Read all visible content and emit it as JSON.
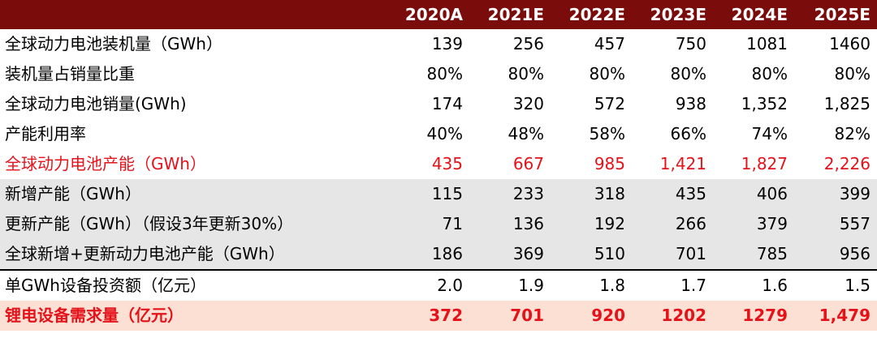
{
  "header": {
    "columns": [
      "",
      "2020A",
      "2021E",
      "2022E",
      "2023E",
      "2024E",
      "2025E"
    ]
  },
  "rows": [
    {
      "label": "全球动力电池装机量（GWh）",
      "values": [
        "139",
        "256",
        "457",
        "750",
        "1081",
        "1460"
      ],
      "style": "plain"
    },
    {
      "label": "装机量占销量比重",
      "values": [
        "80%",
        "80%",
        "80%",
        "80%",
        "80%",
        "80%"
      ],
      "style": "plain"
    },
    {
      "label": "全球动力电池销量(GWh)",
      "values": [
        "174",
        "320",
        "572",
        "938",
        "1,352",
        "1,825"
      ],
      "style": "plain"
    },
    {
      "label": "产能利用率",
      "values": [
        "40%",
        "48%",
        "58%",
        "66%",
        "74%",
        "82%"
      ],
      "style": "plain"
    },
    {
      "label": "全球动力电池产能（GWh）",
      "values": [
        "435",
        "667",
        "985",
        "1,421",
        "1,827",
        "2,226"
      ],
      "style": "red"
    },
    {
      "label": "新增产能（GWh）",
      "values": [
        "115",
        "233",
        "318",
        "435",
        "406",
        "399"
      ],
      "style": "gray"
    },
    {
      "label": "更新产能（GWh）（假设3年更新30%）",
      "values": [
        "71",
        "136",
        "192",
        "266",
        "379",
        "557"
      ],
      "style": "gray"
    },
    {
      "label": "全球新增+更新动力电池产能（GWh）",
      "values": [
        "186",
        "369",
        "510",
        "701",
        "785",
        "956"
      ],
      "style": "gray gray-last"
    },
    {
      "label": "单GWh设备投资额（亿元）",
      "values": [
        "2.0",
        "1.9",
        "1.8",
        "1.7",
        "1.6",
        "1.5"
      ],
      "style": "plain"
    },
    {
      "label": "锂电设备需求量（亿元）",
      "values": [
        "372",
        "701",
        "920",
        "1202",
        "1279",
        "1,479"
      ],
      "style": "peach"
    }
  ],
  "colors": {
    "header_bg": "#7a0c0c",
    "highlight_red": "#e5121a",
    "gray_band": "#e6e6e6",
    "peach_band": "#fbe0d3"
  }
}
